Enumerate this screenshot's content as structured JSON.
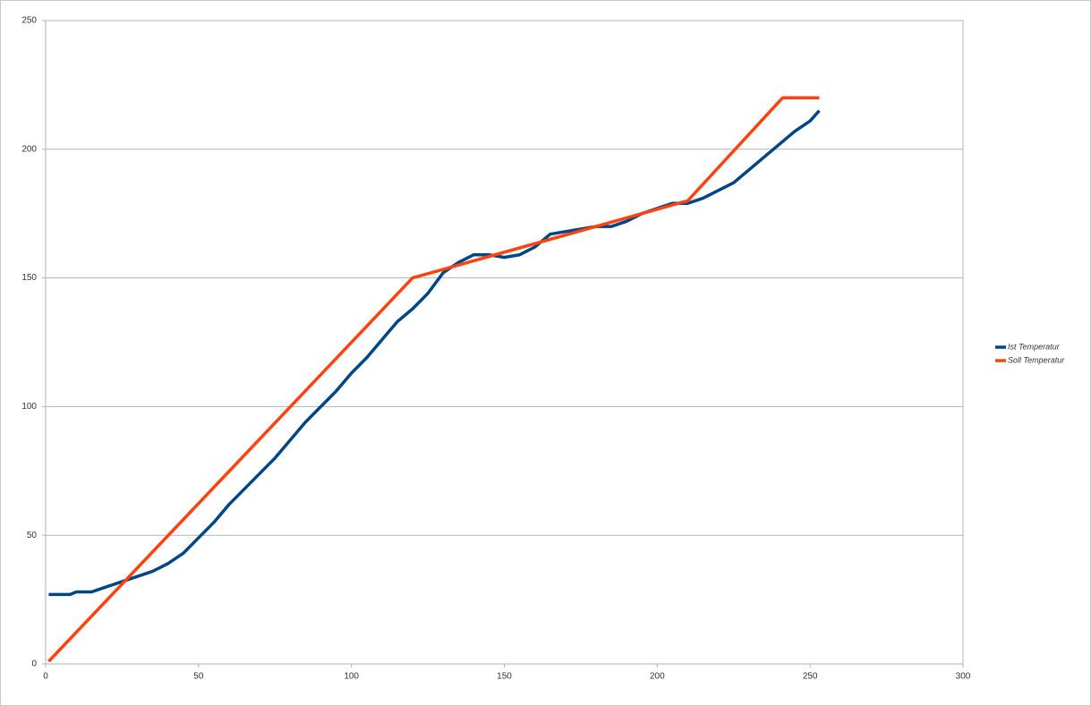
{
  "chart_data": {
    "type": "line",
    "xlim": [
      0,
      300
    ],
    "xticks": [
      0,
      50,
      100,
      150,
      200,
      250,
      300
    ],
    "ylim": [
      0,
      250
    ],
    "yticks": [
      0,
      50,
      100,
      150,
      200,
      250
    ],
    "grid": true,
    "legend": "right",
    "series": [
      {
        "name": "Ist Temperatur",
        "color": "#004586",
        "x": [
          1,
          5,
          8,
          10,
          15,
          20,
          25,
          30,
          35,
          40,
          45,
          50,
          55,
          60,
          65,
          70,
          75,
          80,
          85,
          90,
          95,
          100,
          105,
          110,
          115,
          120,
          125,
          130,
          135,
          140,
          145,
          150,
          155,
          160,
          165,
          170,
          175,
          180,
          185,
          190,
          195,
          200,
          205,
          210,
          215,
          220,
          225,
          230,
          235,
          240,
          245,
          250,
          253
        ],
        "values": [
          27,
          27,
          27,
          28,
          28,
          30,
          32,
          34,
          36,
          39,
          43,
          49,
          55,
          62,
          68,
          74,
          80,
          87,
          94,
          100,
          106,
          113,
          119,
          126,
          133,
          138,
          144,
          152,
          156,
          159,
          159,
          158,
          159,
          162,
          167,
          168,
          169,
          170,
          170,
          172,
          175,
          177,
          179,
          179,
          181,
          184,
          187,
          192,
          197,
          202,
          207,
          211,
          215
        ]
      },
      {
        "name": "Soll Temperatur",
        "color": "#ff420e",
        "x": [
          1,
          120,
          210,
          241,
          253
        ],
        "values": [
          1,
          150,
          180,
          220,
          220
        ]
      }
    ]
  }
}
